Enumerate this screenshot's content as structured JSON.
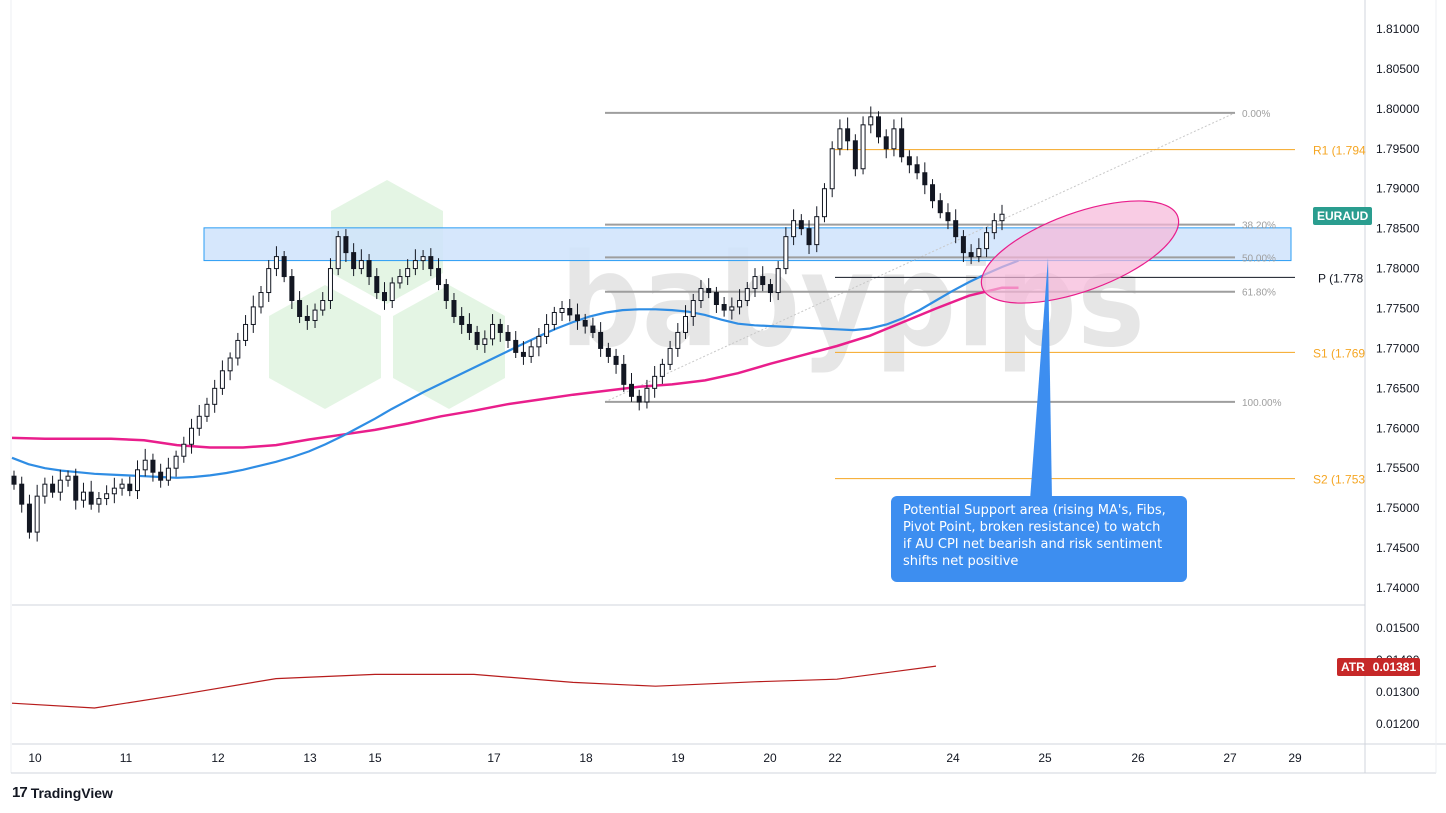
{
  "symbol": "EURAUD",
  "atr": {
    "label": "ATR",
    "value": "0.01381"
  },
  "callout_text": "Potential Support area (rising MA's, Fibs, Pivot Point, broken resistance) to watch if AU CPI net bearish and risk sentiment shifts net positive",
  "footer": {
    "brand": "TradingView"
  },
  "watermark": "babypips",
  "colors": {
    "bull": "#26a69a",
    "bear": "#131722",
    "ma_fast": "#2f8de4",
    "ma_slow": "#e91e8c",
    "atr": "#b71c1c",
    "pivot": "#f5a623",
    "fib": "#9e9e9e",
    "zone_fill": "#cfe3fb",
    "ellipse_fill": "#f7b6d9"
  },
  "chart_data": {
    "type": "candlestick",
    "title": "",
    "x_ticks": [
      "10",
      "11",
      "12",
      "13",
      "15",
      "17",
      "18",
      "19",
      "20",
      "22",
      "24",
      "25",
      "26",
      "27",
      "29"
    ],
    "y_ticks": [
      "1.81000",
      "1.80500",
      "1.80000",
      "1.79500",
      "1.79000",
      "1.78500",
      "1.78000",
      "1.77500",
      "1.77000",
      "1.76500",
      "1.76000",
      "1.75500",
      "1.75000",
      "1.74500",
      "1.74000"
    ],
    "ylim": [
      1.7375,
      1.8145
    ],
    "atr_ticks": [
      "0.01500",
      "0.01400",
      "0.01300",
      "0.01200"
    ],
    "atr_ylim": [
      0.0115,
      0.0156
    ],
    "fib_levels": [
      {
        "label": "0.00%",
        "value": 1.7995
      },
      {
        "label": "38.20%",
        "value": 1.7855
      },
      {
        "label": "50.00%",
        "value": 1.7814
      },
      {
        "label": "61.80%",
        "value": 1.7771
      },
      {
        "label": "100.00%",
        "value": 1.7633
      }
    ],
    "pivots": [
      {
        "label": "R1 (1.794",
        "value": 1.7949
      },
      {
        "label": "P (1.778",
        "value": 1.7789
      },
      {
        "label": "S1 (1.769",
        "value": 1.7695
      },
      {
        "label": "S2 (1.753",
        "value": 1.7537
      }
    ],
    "resistance_zone": [
      1.781,
      1.7851
    ],
    "ma_fast": [
      [
        0,
        1.7563
      ],
      [
        1,
        1.7555
      ],
      [
        2,
        1.755
      ],
      [
        3,
        1.7547
      ],
      [
        4,
        1.7545
      ],
      [
        5,
        1.7543
      ],
      [
        6,
        1.7542
      ],
      [
        7,
        1.7541
      ],
      [
        8,
        1.754
      ],
      [
        9,
        1.7539
      ],
      [
        10,
        1.7538
      ],
      [
        11,
        1.7539
      ],
      [
        12,
        1.7541
      ],
      [
        13,
        1.7544
      ],
      [
        14,
        1.7548
      ],
      [
        15,
        1.7553
      ],
      [
        16,
        1.7558
      ],
      [
        17,
        1.7564
      ],
      [
        18,
        1.7571
      ],
      [
        19,
        1.758
      ],
      [
        20,
        1.759
      ],
      [
        21,
        1.7601
      ],
      [
        22,
        1.7612
      ],
      [
        23,
        1.7624
      ],
      [
        24,
        1.7635
      ],
      [
        25,
        1.7646
      ],
      [
        26,
        1.7656
      ],
      [
        27,
        1.7666
      ],
      [
        28,
        1.7676
      ],
      [
        29,
        1.7686
      ],
      [
        30,
        1.7696
      ],
      [
        31,
        1.7706
      ],
      [
        32,
        1.7716
      ],
      [
        33,
        1.7725
      ],
      [
        34,
        1.7733
      ],
      [
        35,
        1.774
      ],
      [
        36,
        1.7745
      ],
      [
        37,
        1.7748
      ],
      [
        38,
        1.7749
      ],
      [
        39,
        1.7749
      ],
      [
        40,
        1.7748
      ],
      [
        41,
        1.7746
      ],
      [
        42,
        1.7742
      ],
      [
        43,
        1.7736
      ],
      [
        44,
        1.7731
      ],
      [
        45,
        1.7729
      ],
      [
        46,
        1.7728
      ],
      [
        47,
        1.7727
      ],
      [
        48,
        1.7726
      ],
      [
        49,
        1.7725
      ],
      [
        50,
        1.7724
      ],
      [
        51,
        1.7723
      ],
      [
        52,
        1.7725
      ],
      [
        53,
        1.773
      ],
      [
        54,
        1.7738
      ],
      [
        55,
        1.7748
      ],
      [
        56,
        1.776
      ],
      [
        57,
        1.7772
      ],
      [
        58,
        1.7783
      ],
      [
        59,
        1.7793
      ],
      [
        60,
        1.7802
      ],
      [
        61,
        1.781
      ]
    ],
    "ma_slow": [
      [
        0,
        1.7588
      ],
      [
        2,
        1.7587
      ],
      [
        4,
        1.7587
      ],
      [
        6,
        1.7587
      ],
      [
        8,
        1.7585
      ],
      [
        10,
        1.7579
      ],
      [
        12,
        1.7576
      ],
      [
        14,
        1.7576
      ],
      [
        16,
        1.7579
      ],
      [
        18,
        1.7586
      ],
      [
        20,
        1.7592
      ],
      [
        22,
        1.7598
      ],
      [
        24,
        1.7606
      ],
      [
        26,
        1.7615
      ],
      [
        28,
        1.7622
      ],
      [
        30,
        1.763
      ],
      [
        32,
        1.7636
      ],
      [
        34,
        1.7642
      ],
      [
        36,
        1.7647
      ],
      [
        38,
        1.7652
      ],
      [
        40,
        1.7655
      ],
      [
        42,
        1.766
      ],
      [
        44,
        1.7669
      ],
      [
        46,
        1.7681
      ],
      [
        48,
        1.7692
      ],
      [
        50,
        1.7703
      ],
      [
        52,
        1.7716
      ],
      [
        54,
        1.7733
      ],
      [
        56,
        1.775
      ],
      [
        58,
        1.7766
      ],
      [
        60,
        1.7776
      ],
      [
        61,
        1.7776
      ]
    ],
    "atr_series": [
      [
        0,
        0.01265
      ],
      [
        5,
        0.0125
      ],
      [
        10,
        0.0129
      ],
      [
        16,
        0.01342
      ],
      [
        22,
        0.01355
      ],
      [
        28,
        0.01355
      ],
      [
        34,
        0.0133
      ],
      [
        39,
        0.01318
      ],
      [
        45,
        0.01332
      ],
      [
        50,
        0.0134
      ],
      [
        56,
        0.01381
      ]
    ]
  }
}
